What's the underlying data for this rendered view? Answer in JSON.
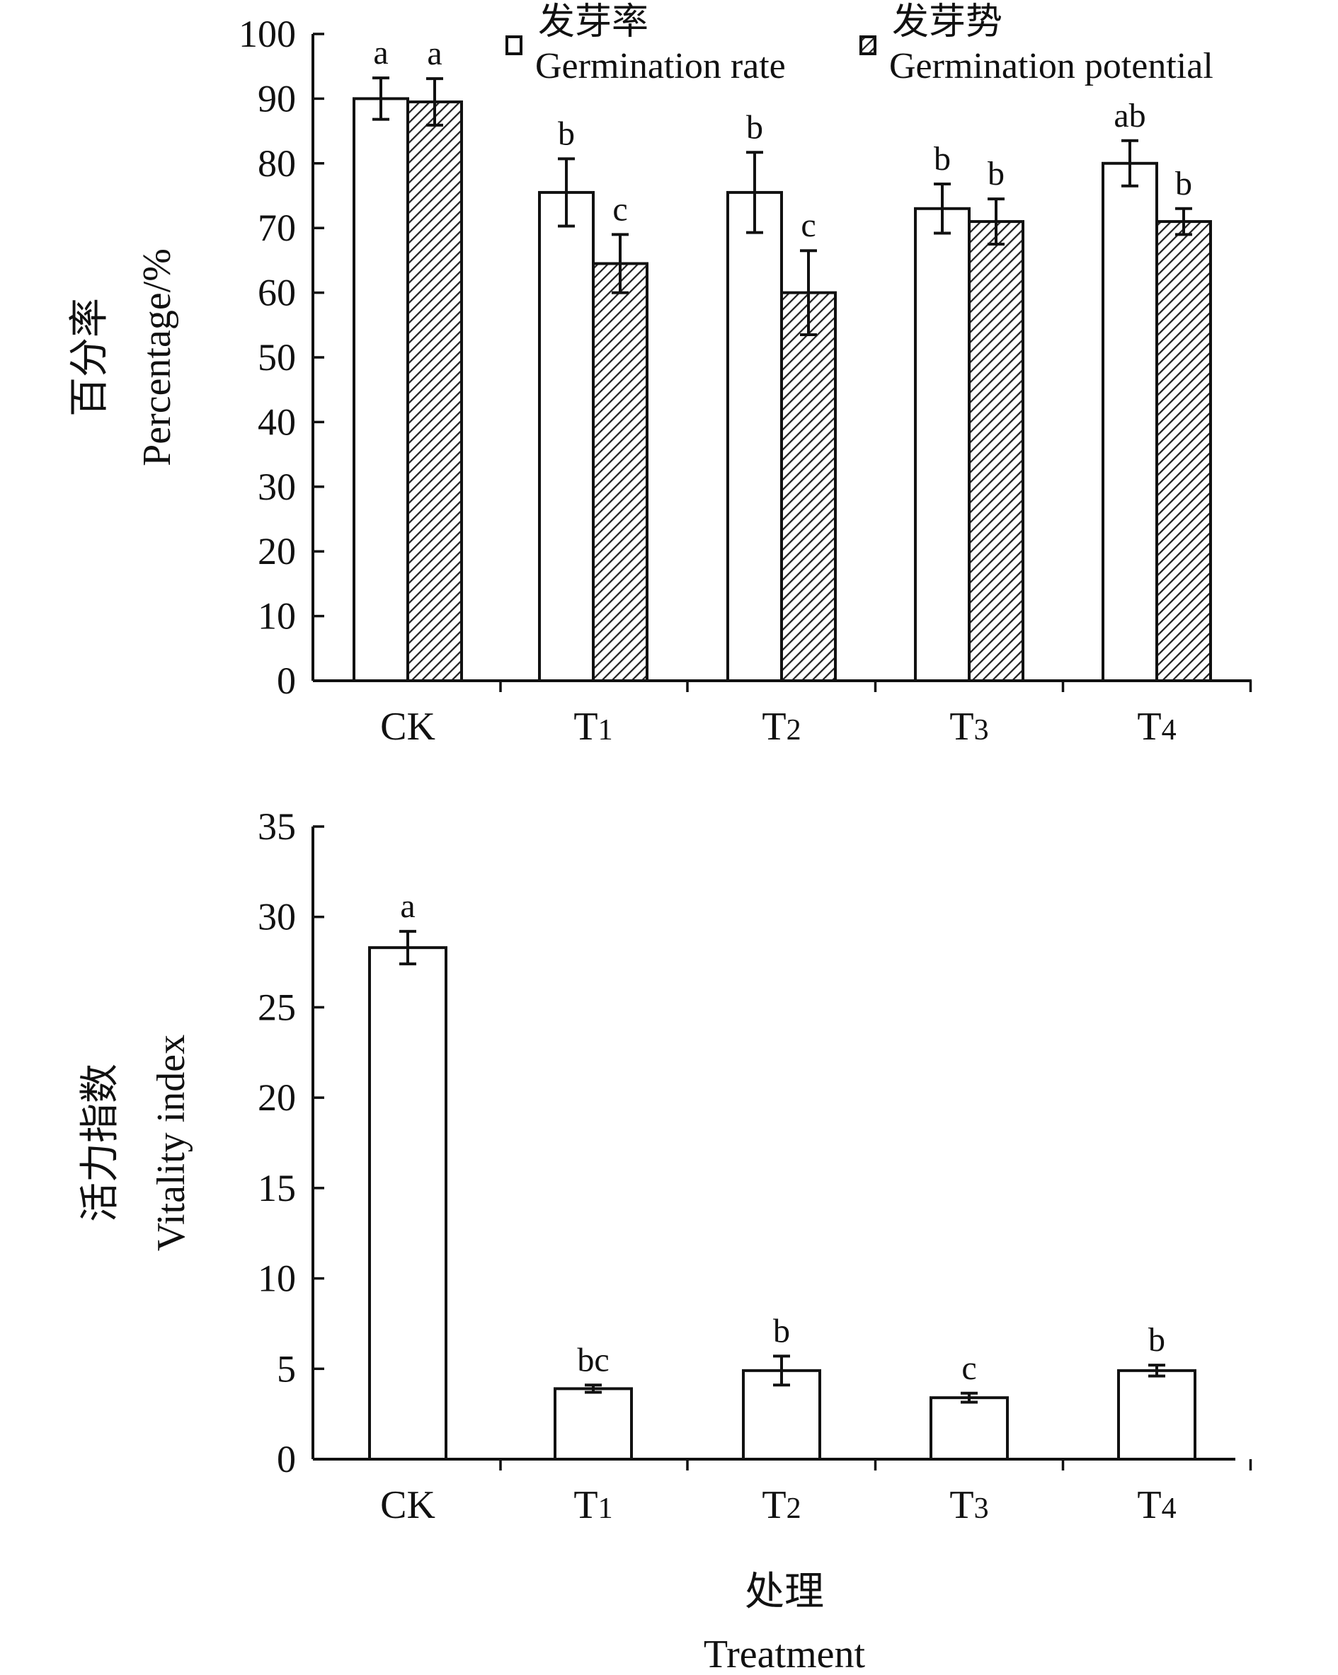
{
  "chart_data": [
    {
      "type": "bar",
      "categories": [
        "CK",
        "T1",
        "T2",
        "T3",
        "T4"
      ],
      "ylabel_cn": "百分率",
      "ylabel_en": "Percentage/%",
      "ylim": [
        0,
        100
      ],
      "yticks": [
        0,
        10,
        20,
        30,
        40,
        50,
        60,
        70,
        80,
        90,
        100
      ],
      "grid": false,
      "legend": "top-right",
      "series": [
        {
          "name_cn": "发芽率",
          "name_en": "Germination rate",
          "pattern": "open",
          "values": [
            90,
            75.5,
            75.5,
            73,
            80
          ],
          "errors": [
            3.2,
            5.2,
            6.2,
            3.8,
            3.5
          ],
          "letters": [
            "a",
            "b",
            "b",
            "b",
            "ab"
          ]
        },
        {
          "name_cn": "发芽势",
          "name_en": "Germination potential",
          "pattern": "hatched",
          "values": [
            89.5,
            64.5,
            60,
            71,
            71
          ],
          "errors": [
            3.6,
            4.5,
            6.5,
            3.5,
            2
          ],
          "letters": [
            "a",
            "c",
            "c",
            "b",
            "b"
          ]
        }
      ]
    },
    {
      "type": "bar",
      "categories": [
        "CK",
        "T1",
        "T2",
        "T3",
        "T4"
      ],
      "ylabel_cn": "活力指数",
      "ylabel_en": "Vitality index",
      "xlabel_cn": "处理",
      "xlabel_en": "Treatment",
      "ylim": [
        0,
        35
      ],
      "yticks": [
        0,
        5,
        10,
        15,
        20,
        25,
        30,
        35
      ],
      "grid": false,
      "series": [
        {
          "pattern": "open",
          "values": [
            28.3,
            3.9,
            4.9,
            3.4,
            4.9
          ],
          "errors": [
            0.9,
            0.2,
            0.8,
            0.25,
            0.3
          ],
          "letters": [
            "a",
            "bc",
            "b",
            "c",
            "b"
          ]
        }
      ]
    }
  ]
}
